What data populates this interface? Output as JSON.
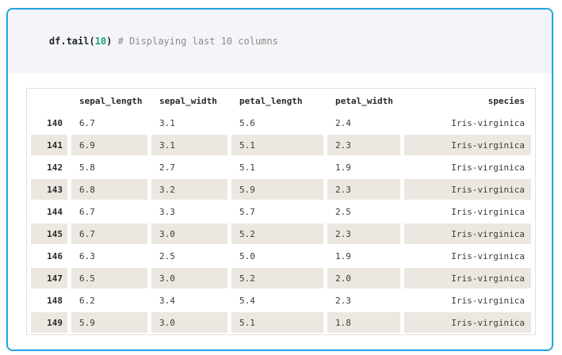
{
  "code": {
    "prefix": "df.tail(",
    "number": "10",
    "suffix": ")",
    "comment": " # Displaying last 10 columns"
  },
  "table": {
    "index_header": "",
    "columns": [
      "sepal_length",
      "sepal_width",
      "petal_length",
      "petal_width",
      "species"
    ],
    "rows": [
      {
        "index": "140",
        "cells": [
          "6.7",
          "3.1",
          "5.6",
          "2.4",
          "Iris-virginica"
        ]
      },
      {
        "index": "141",
        "cells": [
          "6.9",
          "3.1",
          "5.1",
          "2.3",
          "Iris-virginica"
        ]
      },
      {
        "index": "142",
        "cells": [
          "5.8",
          "2.7",
          "5.1",
          "1.9",
          "Iris-virginica"
        ]
      },
      {
        "index": "143",
        "cells": [
          "6.8",
          "3.2",
          "5.9",
          "2.3",
          "Iris-virginica"
        ]
      },
      {
        "index": "144",
        "cells": [
          "6.7",
          "3.3",
          "5.7",
          "2.5",
          "Iris-virginica"
        ]
      },
      {
        "index": "145",
        "cells": [
          "6.7",
          "3.0",
          "5.2",
          "2.3",
          "Iris-virginica"
        ]
      },
      {
        "index": "146",
        "cells": [
          "6.3",
          "2.5",
          "5.0",
          "1.9",
          "Iris-virginica"
        ]
      },
      {
        "index": "147",
        "cells": [
          "6.5",
          "3.0",
          "5.2",
          "2.0",
          "Iris-virginica"
        ]
      },
      {
        "index": "148",
        "cells": [
          "6.2",
          "3.4",
          "5.4",
          "2.3",
          "Iris-virginica"
        ]
      },
      {
        "index": "149",
        "cells": [
          "5.9",
          "3.0",
          "5.1",
          "1.8",
          "Iris-virginica"
        ]
      }
    ]
  },
  "colors": {
    "card_border": "#1ea5e0",
    "code_background": "#f4f5f9",
    "code_text": "#1f2328",
    "code_number": "#1aa179",
    "code_comment": "#8e8b88",
    "table_border": "#e5e1da",
    "row_stripe": "#ece8e1",
    "table_text": "#3d3b38",
    "header_text": "#2b2926"
  }
}
